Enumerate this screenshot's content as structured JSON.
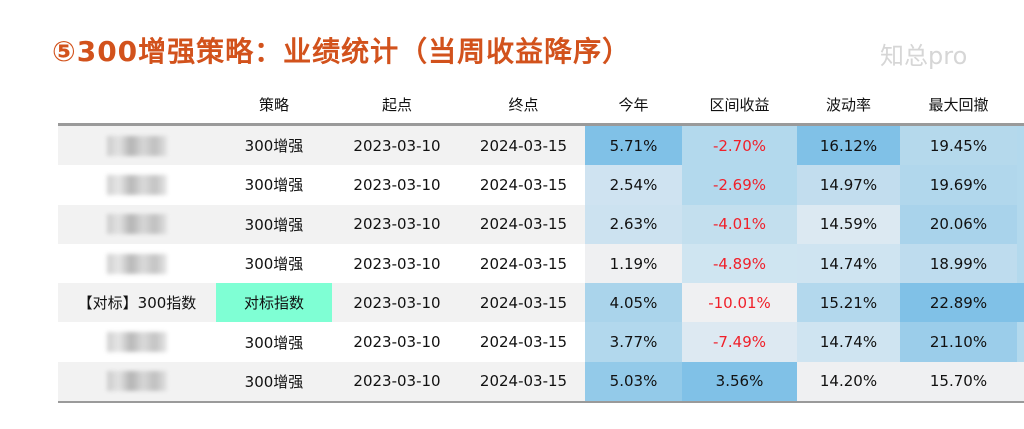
{
  "title": "⑤300增强策略：业绩统计（当周收益降序）",
  "watermark": "知总pro",
  "headers": [
    "策略",
    "起点",
    "终点",
    "今年",
    "区间收益",
    "波动率",
    "最大回撤"
  ],
  "rows": [
    {
      "name": "",
      "strategy": "300增强",
      "start": "2023-03-10",
      "end": "2024-03-15",
      "ytd": "5.71%",
      "range": "-2.70%",
      "vol": "16.12%",
      "mdd": "19.45%",
      "colors": [
        "#80c1e7",
        "#b3d9ed",
        "#80c1e7",
        "#b5d9ec"
      ]
    },
    {
      "name": "",
      "strategy": "300增强",
      "start": "2023-03-10",
      "end": "2024-03-15",
      "ytd": "2.54%",
      "range": "-2.69%",
      "vol": "14.97%",
      "mdd": "19.69%",
      "colors": [
        "#cfe3f1",
        "#b3d9ed",
        "#c2ddee",
        "#b1d7ec"
      ]
    },
    {
      "name": "",
      "strategy": "300增强",
      "start": "2023-03-10",
      "end": "2024-03-15",
      "ytd": "2.63%",
      "range": "-4.01%",
      "vol": "14.59%",
      "mdd": "20.06%",
      "colors": [
        "#cce2f0",
        "#c3dfee",
        "#dce9f2",
        "#a9d3eb"
      ]
    },
    {
      "name": "",
      "strategy": "300增强",
      "start": "2023-03-10",
      "end": "2024-03-15",
      "ytd": "1.19%",
      "range": "-4.89%",
      "vol": "14.74%",
      "mdd": "18.99%",
      "colors": [
        "#eff0f2",
        "#cfe5f1",
        "#cfe4f1",
        "#bedcee"
      ]
    },
    {
      "name": "【对标】300指数",
      "strategy": "对标指数",
      "start": "2023-03-10",
      "end": "2024-03-15",
      "ytd": "4.05%",
      "range": "-10.01%",
      "vol": "15.21%",
      "mdd": "22.89%",
      "colors": [
        "#aad4eb",
        "#eff0f2",
        "#b3d8ed",
        "#80c1e7"
      ],
      "highlight": "#7fffd4"
    },
    {
      "name": "",
      "strategy": "300增强",
      "start": "2023-03-10",
      "end": "2024-03-15",
      "ytd": "3.77%",
      "range": "-7.49%",
      "vol": "14.74%",
      "mdd": "21.10%",
      "colors": [
        "#b2d8ed",
        "#dde9f2",
        "#cfe4f1",
        "#9bcdea"
      ]
    },
    {
      "name": "",
      "strategy": "300增强",
      "start": "2023-03-10",
      "end": "2024-03-15",
      "ytd": "5.03%",
      "range": "3.56%",
      "vol": "14.20%",
      "mdd": "15.70%",
      "colors": [
        "#93cae9",
        "#80c1e7",
        "#eff0f2",
        "#eff0f2"
      ]
    }
  ]
}
